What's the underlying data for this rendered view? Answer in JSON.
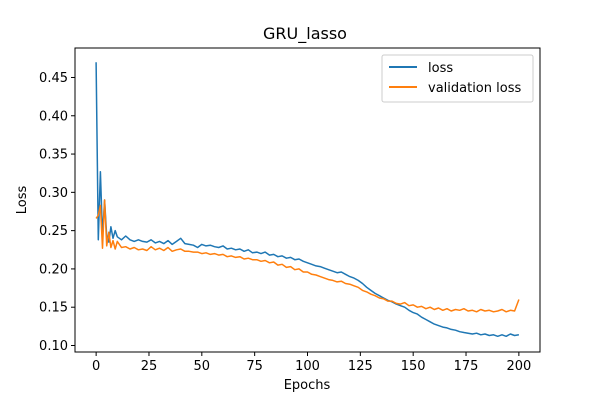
{
  "chart_data": {
    "type": "line",
    "title": "GRU_lasso",
    "xlabel": "Epochs",
    "ylabel": "Loss",
    "xlim": [
      -10,
      210
    ],
    "ylim": [
      0.0915,
      0.4885
    ],
    "xticks": [
      0,
      25,
      50,
      75,
      100,
      125,
      150,
      175,
      200
    ],
    "yticks": [
      0.1,
      0.15,
      0.2,
      0.25,
      0.3,
      0.35,
      0.4,
      0.45
    ],
    "grid": false,
    "legend_position": "top-right",
    "series": [
      {
        "name": "loss",
        "color": "#1f77b4",
        "x": [
          0,
          1,
          2,
          3,
          4,
          5,
          6,
          7,
          8,
          9,
          10,
          12,
          14,
          16,
          18,
          20,
          22,
          24,
          26,
          28,
          30,
          32,
          34,
          36,
          38,
          40,
          42,
          44,
          46,
          48,
          50,
          52,
          54,
          56,
          58,
          60,
          62,
          64,
          66,
          68,
          70,
          72,
          74,
          76,
          78,
          80,
          82,
          84,
          86,
          88,
          90,
          92,
          94,
          96,
          98,
          100,
          102,
          104,
          106,
          108,
          110,
          112,
          114,
          116,
          118,
          120,
          122,
          124,
          126,
          128,
          130,
          132,
          134,
          136,
          138,
          140,
          142,
          144,
          146,
          148,
          150,
          152,
          154,
          156,
          158,
          160,
          162,
          164,
          166,
          168,
          170,
          172,
          174,
          176,
          178,
          180,
          182,
          184,
          186,
          188,
          190,
          192,
          194,
          196,
          198,
          200
        ],
        "y": [
          0.47,
          0.238,
          0.327,
          0.243,
          0.29,
          0.243,
          0.235,
          0.255,
          0.24,
          0.25,
          0.242,
          0.238,
          0.243,
          0.238,
          0.236,
          0.238,
          0.236,
          0.235,
          0.238,
          0.234,
          0.236,
          0.233,
          0.237,
          0.232,
          0.236,
          0.24,
          0.233,
          0.232,
          0.231,
          0.228,
          0.232,
          0.23,
          0.231,
          0.229,
          0.228,
          0.23,
          0.226,
          0.227,
          0.225,
          0.226,
          0.223,
          0.225,
          0.221,
          0.222,
          0.22,
          0.222,
          0.218,
          0.219,
          0.216,
          0.217,
          0.214,
          0.215,
          0.212,
          0.213,
          0.21,
          0.208,
          0.206,
          0.204,
          0.203,
          0.201,
          0.199,
          0.197,
          0.195,
          0.196,
          0.193,
          0.19,
          0.188,
          0.185,
          0.181,
          0.176,
          0.172,
          0.168,
          0.165,
          0.162,
          0.159,
          0.157,
          0.154,
          0.152,
          0.15,
          0.146,
          0.143,
          0.141,
          0.137,
          0.134,
          0.131,
          0.128,
          0.126,
          0.124,
          0.123,
          0.121,
          0.12,
          0.118,
          0.117,
          0.116,
          0.115,
          0.116,
          0.114,
          0.115,
          0.113,
          0.114,
          0.112,
          0.114,
          0.112,
          0.115,
          0.113,
          0.114
        ]
      },
      {
        "name": "validation loss",
        "color": "#ff7f0e",
        "x": [
          0,
          1,
          2,
          3,
          4,
          5,
          6,
          7,
          8,
          9,
          10,
          12,
          14,
          16,
          18,
          20,
          22,
          24,
          26,
          28,
          30,
          32,
          34,
          36,
          38,
          40,
          42,
          44,
          46,
          48,
          50,
          52,
          54,
          56,
          58,
          60,
          62,
          64,
          66,
          68,
          70,
          72,
          74,
          76,
          78,
          80,
          82,
          84,
          86,
          88,
          90,
          92,
          94,
          96,
          98,
          100,
          102,
          104,
          106,
          108,
          110,
          112,
          114,
          116,
          118,
          120,
          122,
          124,
          126,
          128,
          130,
          132,
          134,
          136,
          138,
          140,
          142,
          144,
          146,
          148,
          150,
          152,
          154,
          156,
          158,
          160,
          162,
          164,
          166,
          168,
          170,
          172,
          174,
          176,
          178,
          180,
          182,
          184,
          186,
          188,
          190,
          192,
          194,
          196,
          198,
          200
        ],
        "y": [
          0.266,
          0.27,
          0.283,
          0.227,
          0.29,
          0.23,
          0.248,
          0.228,
          0.237,
          0.226,
          0.236,
          0.228,
          0.229,
          0.226,
          0.228,
          0.225,
          0.226,
          0.224,
          0.229,
          0.225,
          0.227,
          0.224,
          0.228,
          0.223,
          0.225,
          0.226,
          0.223,
          0.223,
          0.222,
          0.222,
          0.22,
          0.221,
          0.219,
          0.22,
          0.218,
          0.219,
          0.216,
          0.217,
          0.215,
          0.216,
          0.213,
          0.214,
          0.212,
          0.212,
          0.21,
          0.211,
          0.208,
          0.209,
          0.205,
          0.206,
          0.202,
          0.203,
          0.199,
          0.2,
          0.196,
          0.196,
          0.193,
          0.192,
          0.19,
          0.188,
          0.186,
          0.185,
          0.183,
          0.184,
          0.181,
          0.18,
          0.178,
          0.176,
          0.172,
          0.17,
          0.167,
          0.165,
          0.162,
          0.161,
          0.158,
          0.158,
          0.155,
          0.154,
          0.156,
          0.152,
          0.153,
          0.15,
          0.151,
          0.148,
          0.15,
          0.147,
          0.149,
          0.146,
          0.148,
          0.145,
          0.147,
          0.146,
          0.148,
          0.145,
          0.146,
          0.144,
          0.147,
          0.145,
          0.146,
          0.144,
          0.145,
          0.147,
          0.144,
          0.146,
          0.145,
          0.16
        ]
      }
    ]
  }
}
